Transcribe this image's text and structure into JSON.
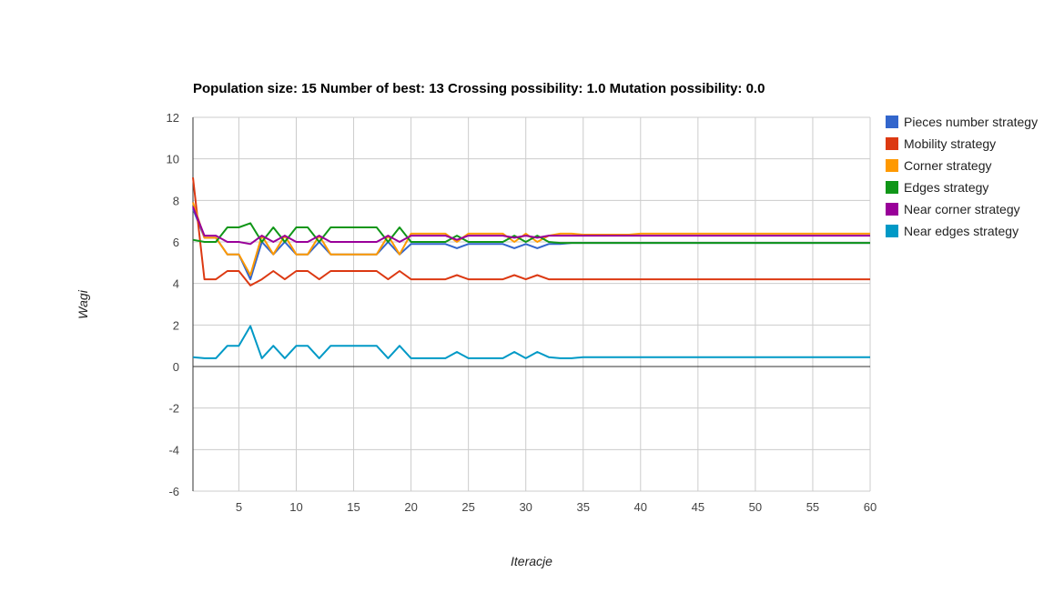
{
  "chart_data": {
    "type": "line",
    "title": "Population size: 15 Number of best: 13 Crossing possibility: 1.0 Mutation possibility: 0.0",
    "xlabel": "Iteracje",
    "ylabel": "Wagi",
    "xlim": [
      1,
      60
    ],
    "ylim": [
      -6,
      12
    ],
    "x_ticks": [
      5,
      10,
      15,
      20,
      25,
      30,
      35,
      40,
      45,
      50,
      55,
      60
    ],
    "y_ticks": [
      -6,
      -4,
      -2,
      0,
      2,
      4,
      6,
      8,
      10,
      12
    ],
    "grid": true,
    "legend_position": "right",
    "x": [
      1,
      2,
      3,
      4,
      5,
      6,
      7,
      8,
      9,
      10,
      11,
      12,
      13,
      14,
      15,
      16,
      17,
      18,
      19,
      20,
      21,
      22,
      23,
      24,
      25,
      26,
      27,
      28,
      29,
      30,
      31,
      32,
      33,
      34,
      35,
      36,
      37,
      38,
      39,
      40,
      41,
      42,
      43,
      44,
      45,
      46,
      47,
      48,
      49,
      50,
      51,
      52,
      53,
      54,
      55,
      56,
      57,
      58,
      59,
      60
    ],
    "series": [
      {
        "name": "Pieces number strategy",
        "color": "#3366cc",
        "values": [
          7.6,
          6.2,
          6.2,
          5.4,
          5.4,
          4.2,
          6.0,
          5.4,
          6.0,
          5.4,
          5.4,
          6.0,
          5.4,
          5.4,
          5.4,
          5.4,
          5.4,
          6.0,
          5.4,
          5.9,
          5.9,
          5.9,
          5.9,
          5.7,
          5.9,
          5.9,
          5.9,
          5.9,
          5.7,
          5.9,
          5.7,
          5.9,
          5.9,
          5.95,
          5.95,
          5.95,
          5.95,
          5.95,
          5.95,
          5.95,
          5.95,
          5.95,
          5.95,
          5.95,
          5.95,
          5.95,
          5.95,
          5.95,
          5.95,
          5.95,
          5.95,
          5.95,
          5.95,
          5.95,
          5.95,
          5.95,
          5.95,
          5.95,
          5.95,
          5.95
        ]
      },
      {
        "name": "Mobility strategy",
        "color": "#dc3912",
        "values": [
          9.1,
          4.2,
          4.2,
          4.6,
          4.6,
          3.9,
          4.2,
          4.6,
          4.2,
          4.6,
          4.6,
          4.2,
          4.6,
          4.6,
          4.6,
          4.6,
          4.6,
          4.2,
          4.6,
          4.2,
          4.2,
          4.2,
          4.2,
          4.4,
          4.2,
          4.2,
          4.2,
          4.2,
          4.4,
          4.2,
          4.4,
          4.2,
          4.2,
          4.2,
          4.2,
          4.2,
          4.2,
          4.2,
          4.2,
          4.2,
          4.2,
          4.2,
          4.2,
          4.2,
          4.2,
          4.2,
          4.2,
          4.2,
          4.2,
          4.2,
          4.2,
          4.2,
          4.2,
          4.2,
          4.2,
          4.2,
          4.2,
          4.2,
          4.2,
          4.2
        ]
      },
      {
        "name": "Corner strategy",
        "color": "#ff9900",
        "values": [
          7.9,
          6.2,
          6.2,
          5.4,
          5.4,
          4.4,
          6.3,
          5.4,
          6.3,
          5.4,
          5.4,
          6.3,
          5.4,
          5.4,
          5.4,
          5.4,
          5.4,
          6.3,
          5.4,
          6.4,
          6.4,
          6.4,
          6.4,
          6.0,
          6.4,
          6.4,
          6.4,
          6.4,
          6.0,
          6.4,
          6.0,
          6.3,
          6.4,
          6.4,
          6.35,
          6.35,
          6.35,
          6.35,
          6.35,
          6.4,
          6.4,
          6.4,
          6.4,
          6.4,
          6.4,
          6.4,
          6.4,
          6.4,
          6.4,
          6.4,
          6.4,
          6.4,
          6.4,
          6.4,
          6.4,
          6.4,
          6.4,
          6.4,
          6.4,
          6.4
        ]
      },
      {
        "name": "Edges strategy",
        "color": "#109618",
        "values": [
          6.1,
          6.0,
          6.0,
          6.7,
          6.7,
          6.9,
          6.0,
          6.7,
          6.0,
          6.7,
          6.7,
          6.0,
          6.7,
          6.7,
          6.7,
          6.7,
          6.7,
          6.0,
          6.7,
          6.0,
          6.0,
          6.0,
          6.0,
          6.3,
          6.0,
          6.0,
          6.0,
          6.0,
          6.3,
          6.0,
          6.3,
          6.0,
          5.95,
          5.95,
          5.95,
          5.95,
          5.95,
          5.95,
          5.95,
          5.95,
          5.95,
          5.95,
          5.95,
          5.95,
          5.95,
          5.95,
          5.95,
          5.95,
          5.95,
          5.95,
          5.95,
          5.95,
          5.95,
          5.95,
          5.95,
          5.95,
          5.95,
          5.95,
          5.95,
          5.95
        ]
      },
      {
        "name": "Near corner strategy",
        "color": "#990099",
        "values": [
          7.7,
          6.3,
          6.3,
          6.0,
          6.0,
          5.9,
          6.3,
          6.0,
          6.3,
          6.0,
          6.0,
          6.3,
          6.0,
          6.0,
          6.0,
          6.0,
          6.0,
          6.3,
          6.0,
          6.3,
          6.3,
          6.3,
          6.3,
          6.1,
          6.3,
          6.3,
          6.3,
          6.3,
          6.2,
          6.3,
          6.2,
          6.3,
          6.3,
          6.3,
          6.3,
          6.3,
          6.3,
          6.3,
          6.3,
          6.3,
          6.3,
          6.3,
          6.3,
          6.3,
          6.3,
          6.3,
          6.3,
          6.3,
          6.3,
          6.3,
          6.3,
          6.3,
          6.3,
          6.3,
          6.3,
          6.3,
          6.3,
          6.3,
          6.3,
          6.3
        ]
      },
      {
        "name": "Near edges strategy",
        "color": "#0099c6",
        "values": [
          0.45,
          0.4,
          0.4,
          1.0,
          1.0,
          1.95,
          0.4,
          1.0,
          0.4,
          1.0,
          1.0,
          0.4,
          1.0,
          1.0,
          1.0,
          1.0,
          1.0,
          0.4,
          1.0,
          0.4,
          0.4,
          0.4,
          0.4,
          0.7,
          0.4,
          0.4,
          0.4,
          0.4,
          0.7,
          0.4,
          0.7,
          0.45,
          0.4,
          0.4,
          0.45,
          0.45,
          0.45,
          0.45,
          0.45,
          0.45,
          0.45,
          0.45,
          0.45,
          0.45,
          0.45,
          0.45,
          0.45,
          0.45,
          0.45,
          0.45,
          0.45,
          0.45,
          0.45,
          0.45,
          0.45,
          0.45,
          0.45,
          0.45,
          0.45,
          0.45
        ]
      }
    ]
  }
}
